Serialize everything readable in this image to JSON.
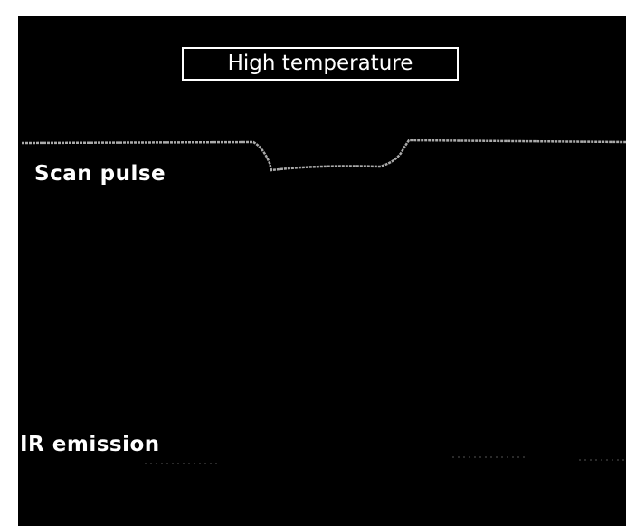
{
  "title": "High temperature",
  "traces": [
    {
      "label": "Scan pulse"
    },
    {
      "label": "IR emission"
    }
  ]
}
